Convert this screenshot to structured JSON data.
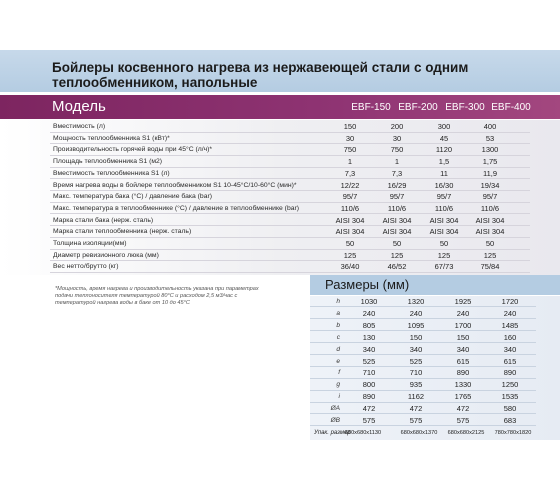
{
  "title": "Бойлеры косвенного нагрева из нержавеющей стали с одним теплообменником, напольные",
  "model_label": "Модель",
  "models": [
    "EBF-150",
    "EBF-200",
    "EBF-300",
    "EBF-400"
  ],
  "specs": [
    {
      "label": "Вместимость (л)",
      "values": [
        "150",
        "200",
        "300",
        "400"
      ]
    },
    {
      "label": "Мощность теплообменника S1 (кВт)*",
      "values": [
        "30",
        "30",
        "45",
        "53"
      ]
    },
    {
      "label": "Производительность горячей воды при 45°С (л/ч)*",
      "values": [
        "750",
        "750",
        "1120",
        "1300"
      ]
    },
    {
      "label": "Площадь теплообменника S1 (м2)",
      "values": [
        "1",
        "1",
        "1,5",
        "1,75"
      ]
    },
    {
      "label": "Вместимость теплообменника S1 (л)",
      "values": [
        "7,3",
        "7,3",
        "11",
        "11,9"
      ]
    },
    {
      "label": "Время нагрева воды в бойлере теплообменником S1 10-45°С/10-60°С (мин)*",
      "values": [
        "12/22",
        "16/29",
        "16/30",
        "19/34"
      ]
    },
    {
      "label": "Макс. температура бака (°С) / давление бака (bar)",
      "values": [
        "95/7",
        "95/7",
        "95/7",
        "95/7"
      ]
    },
    {
      "label": "Макс. температура в теплообменнике (°С) / давление в теплообменнике (bar)",
      "values": [
        "110/6",
        "110/6",
        "110/6",
        "110/6"
      ]
    },
    {
      "label": "Марка стали бака (нерж. сталь)",
      "values": [
        "AISI 304",
        "AISI 304",
        "AISI 304",
        "AISI 304"
      ]
    },
    {
      "label": "Марка стали теплообменника (нерж. сталь)",
      "values": [
        "AISI 304",
        "AISI 304",
        "AISI 304",
        "AISI 304"
      ]
    },
    {
      "label": "Толщина изоляции(мм)",
      "values": [
        "50",
        "50",
        "50",
        "50"
      ]
    },
    {
      "label": "Диаметр ревизионного люка (мм)",
      "values": [
        "125",
        "125",
        "125",
        "125"
      ]
    },
    {
      "label": "Вес нетто/брутто (кг)",
      "values": [
        "36/40",
        "46/52",
        "67/73",
        "75/84"
      ]
    }
  ],
  "note": "*Мощность, время нагрева и производительность указана при параметрах подачи теплоносителя температурой 80°С и расходом 2,5 м3/час с температурой нагрева воды в баке от 10 до 45°С",
  "sizes_title": "Размеры (мм)",
  "sizes": [
    {
      "label": "h",
      "values": [
        "1030",
        "1320",
        "1925",
        "1720"
      ]
    },
    {
      "label": "a",
      "values": [
        "240",
        "240",
        "240",
        "240"
      ]
    },
    {
      "label": "b",
      "values": [
        "805",
        "1095",
        "1700",
        "1485"
      ]
    },
    {
      "label": "c",
      "values": [
        "130",
        "150",
        "150",
        "160"
      ]
    },
    {
      "label": "d",
      "values": [
        "340",
        "340",
        "340",
        "340"
      ]
    },
    {
      "label": "e",
      "values": [
        "525",
        "525",
        "615",
        "615"
      ]
    },
    {
      "label": "f",
      "values": [
        "710",
        "710",
        "890",
        "890"
      ]
    },
    {
      "label": "g",
      "values": [
        "800",
        "935",
        "1330",
        "1250"
      ]
    },
    {
      "label": "i",
      "values": [
        "890",
        "1162",
        "1765",
        "1535"
      ]
    },
    {
      "label": "ØA",
      "values": [
        "472",
        "472",
        "472",
        "580"
      ]
    },
    {
      "label": "ØB",
      "values": [
        "575",
        "575",
        "575",
        "683"
      ]
    }
  ],
  "pack": {
    "label": "Упак. размер",
    "values": [
      "680x680x1130",
      "680x680x1370",
      "680x680x2125",
      "780x780x1820"
    ]
  }
}
